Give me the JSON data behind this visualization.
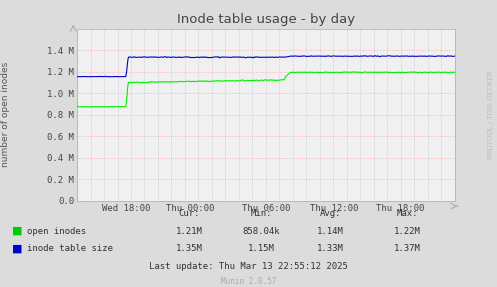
{
  "title": "Inode table usage - by day",
  "ylabel": "number of open inodes",
  "outer_bg": "#dcdcdc",
  "plot_bg": "#f0f0f0",
  "grid_color_h": "#ff9999",
  "grid_color_v": "#aaaacc",
  "xticklabels": [
    "Wed 18:00",
    "Thu 00:00",
    "Thu 06:00",
    "Thu 12:00",
    "Thu 18:00"
  ],
  "xtick_positions": [
    0.13,
    0.3,
    0.5,
    0.68,
    0.855
  ],
  "ylim": [
    0.0,
    1.6
  ],
  "yticks": [
    0.0,
    0.2,
    0.4,
    0.6,
    0.8,
    1.0,
    1.2,
    1.4
  ],
  "yticklabels": [
    "0.0",
    "0.2 M",
    "0.4 M",
    "0.6 M",
    "0.8 M",
    "1.0 M",
    "1.2 M",
    "1.4 M"
  ],
  "green_line_color": "#00ee00",
  "blue_line_color": "#0000cc",
  "legend": [
    {
      "label": "open inodes",
      "color": "#00cc00"
    },
    {
      "label": "inode table size",
      "color": "#0000cc"
    }
  ],
  "stats_headers": [
    "Cur:",
    "Min:",
    "Avg:",
    "Max:"
  ],
  "stats_green": [
    "1.21M",
    "858.04k",
    "1.14M",
    "1.22M"
  ],
  "stats_blue": [
    "1.35M",
    "1.15M",
    "1.33M",
    "1.37M"
  ],
  "last_update": "Last update: Thu Mar 13 22:55:12 2025",
  "munin_version": "Munin 2.0.57",
  "rrdtool_label": "RRDTOOL / TOBI OETIKER"
}
